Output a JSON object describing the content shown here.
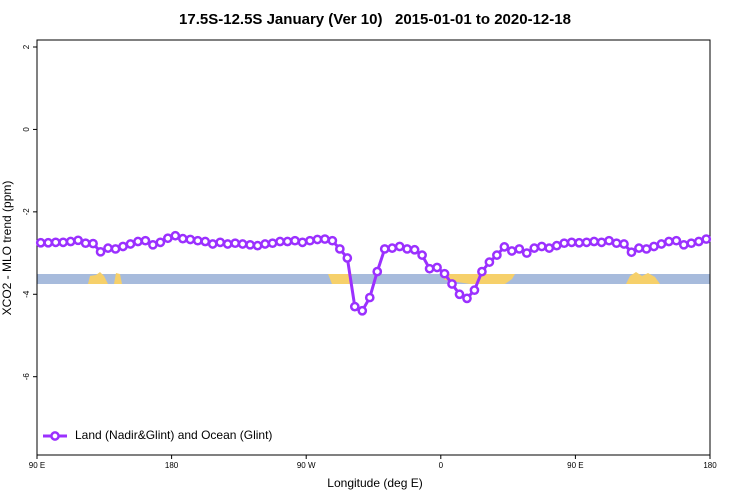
{
  "chart_data": {
    "type": "line",
    "title": "17.5S-12.5S January (Ver 10)   2015-01-01 to 2020-12-18",
    "xlabel": "Longitude (deg E)",
    "ylabel": "XCO2 - MLO trend (ppm)",
    "xlim": [
      90,
      540
    ],
    "ylim": [
      -7.9,
      2.17
    ],
    "xticks": [
      {
        "value": 90,
        "label": "90 E"
      },
      {
        "value": 180,
        "label": "180"
      },
      {
        "value": 270,
        "label": "90 W"
      },
      {
        "value": 360,
        "label": "0"
      },
      {
        "value": 450,
        "label": "90 E"
      },
      {
        "value": 540,
        "label": "180"
      }
    ],
    "yticks": [
      2,
      0,
      -2,
      -4,
      -6
    ],
    "legend": "bottom-left",
    "x": [
      92.5,
      97.5,
      102.5,
      107.5,
      112.5,
      117.5,
      122.5,
      127.5,
      132.5,
      137.5,
      142.5,
      147.5,
      152.5,
      157.5,
      162.5,
      167.5,
      172.5,
      177.5,
      182.5,
      187.5,
      192.5,
      197.5,
      202.5,
      207.5,
      212.5,
      217.5,
      222.5,
      227.5,
      232.5,
      237.5,
      242.5,
      247.5,
      252.5,
      257.5,
      262.5,
      267.5,
      272.5,
      277.5,
      282.5,
      287.5,
      292.5,
      297.5,
      302.5,
      307.5,
      312.5,
      317.5,
      322.5,
      327.5,
      332.5,
      337.5,
      342.5,
      347.5,
      352.5,
      357.5,
      362.5,
      367.5,
      372.5,
      377.5,
      382.5,
      387.5,
      392.5,
      397.5,
      402.5,
      407.5,
      412.5,
      417.5,
      422.5,
      427.5,
      432.5,
      437.5,
      442.5,
      447.5,
      452.5,
      457.5,
      462.5,
      467.5,
      472.5,
      477.5,
      482.5,
      487.5,
      492.5,
      497.5,
      502.5,
      507.5,
      512.5,
      517.5,
      522.5,
      527.5,
      532.5,
      537.5
    ],
    "series": [
      {
        "name": "Land (Nadir&Glint) and Ocean (Glint)",
        "color": "#9b30ff",
        "values": [
          -2.75,
          -2.75,
          -2.74,
          -2.74,
          -2.72,
          -2.69,
          -2.76,
          -2.77,
          -2.97,
          -2.88,
          -2.9,
          -2.84,
          -2.78,
          -2.72,
          -2.7,
          -2.8,
          -2.74,
          -2.64,
          -2.58,
          -2.65,
          -2.67,
          -2.7,
          -2.72,
          -2.78,
          -2.74,
          -2.78,
          -2.76,
          -2.78,
          -2.8,
          -2.82,
          -2.78,
          -2.76,
          -2.72,
          -2.72,
          -2.7,
          -2.74,
          -2.7,
          -2.67,
          -2.66,
          -2.7,
          -2.9,
          -3.12,
          -4.3,
          -4.4,
          -4.08,
          -3.45,
          -2.9,
          -2.88,
          -2.84,
          -2.9,
          -2.92,
          -3.05,
          -3.38,
          -3.35,
          -3.5,
          -3.75,
          -4.0,
          -4.1,
          -3.9,
          -3.45,
          -3.22,
          -3.05,
          -2.85,
          -2.95,
          -2.9,
          -3.0,
          -2.88,
          -2.84,
          -2.88,
          -2.82,
          -2.76,
          -2.74,
          -2.75,
          -2.74,
          -2.72,
          -2.74,
          -2.7,
          -2.76,
          -2.78,
          -2.98,
          -2.88,
          -2.9,
          -2.84,
          -2.78,
          -2.72,
          -2.7,
          -2.8,
          -2.76,
          -2.72,
          -2.66
        ]
      }
    ]
  }
}
